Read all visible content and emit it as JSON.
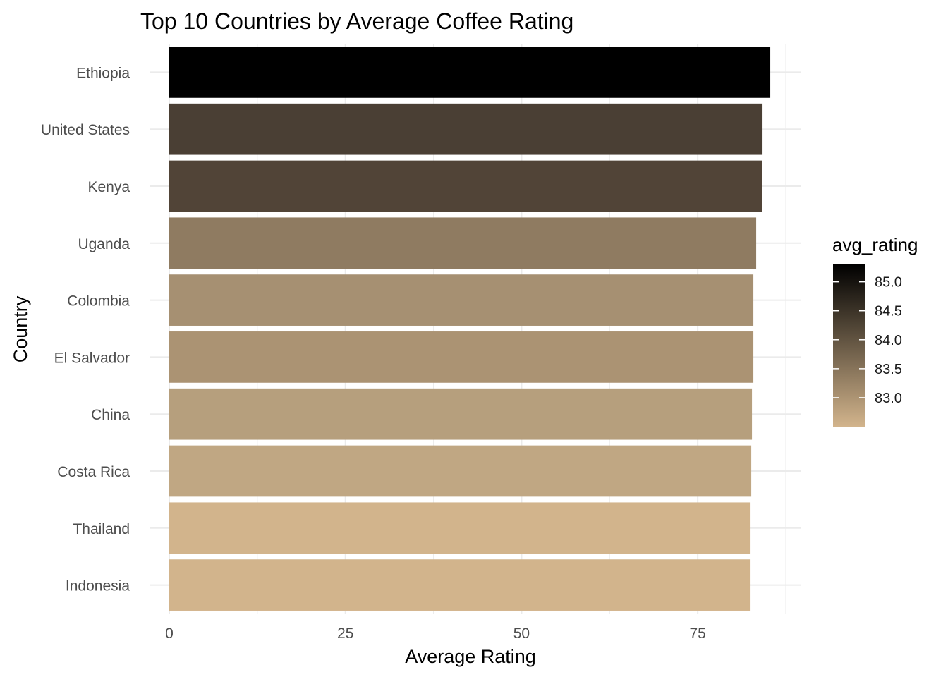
{
  "chart_data": {
    "type": "bar",
    "orientation": "horizontal",
    "title": "Top 10 Countries by Average Coffee Rating",
    "xlabel": "Average Rating",
    "ylabel": "Country",
    "categories": [
      "Ethiopia",
      "United States",
      "Kenya",
      "Uganda",
      "Colombia",
      "El Salvador",
      "China",
      "Costa Rica",
      "Thailand",
      "Indonesia"
    ],
    "values": [
      85.3,
      84.2,
      84.1,
      83.3,
      82.9,
      82.9,
      82.7,
      82.6,
      82.5,
      82.5
    ],
    "bar_colors": [
      "#000000",
      "#4a3f34",
      "#514437",
      "#8f7b61",
      "#a69072",
      "#ab9373",
      "#b69f7d",
      "#c0a783",
      "#d2b48c",
      "#d2b48c"
    ],
    "xlim": [
      0,
      89.6
    ],
    "xticks": [
      0,
      25,
      50,
      75
    ],
    "x_tick_labels": [
      "0",
      "25",
      "50",
      "75"
    ],
    "x_minor": [
      12.5,
      37.5,
      62.5,
      87.5
    ],
    "grid": true,
    "legend": {
      "position": "right",
      "title": "avg_rating",
      "range": [
        82.5,
        85.3
      ],
      "ticks": [
        85.0,
        84.5,
        84.0,
        83.5,
        83.0
      ],
      "tick_labels": [
        "85.0",
        "84.5",
        "84.0",
        "83.5",
        "83.0"
      ],
      "color_low": "#d2b48c",
      "color_high": "#000000"
    }
  }
}
